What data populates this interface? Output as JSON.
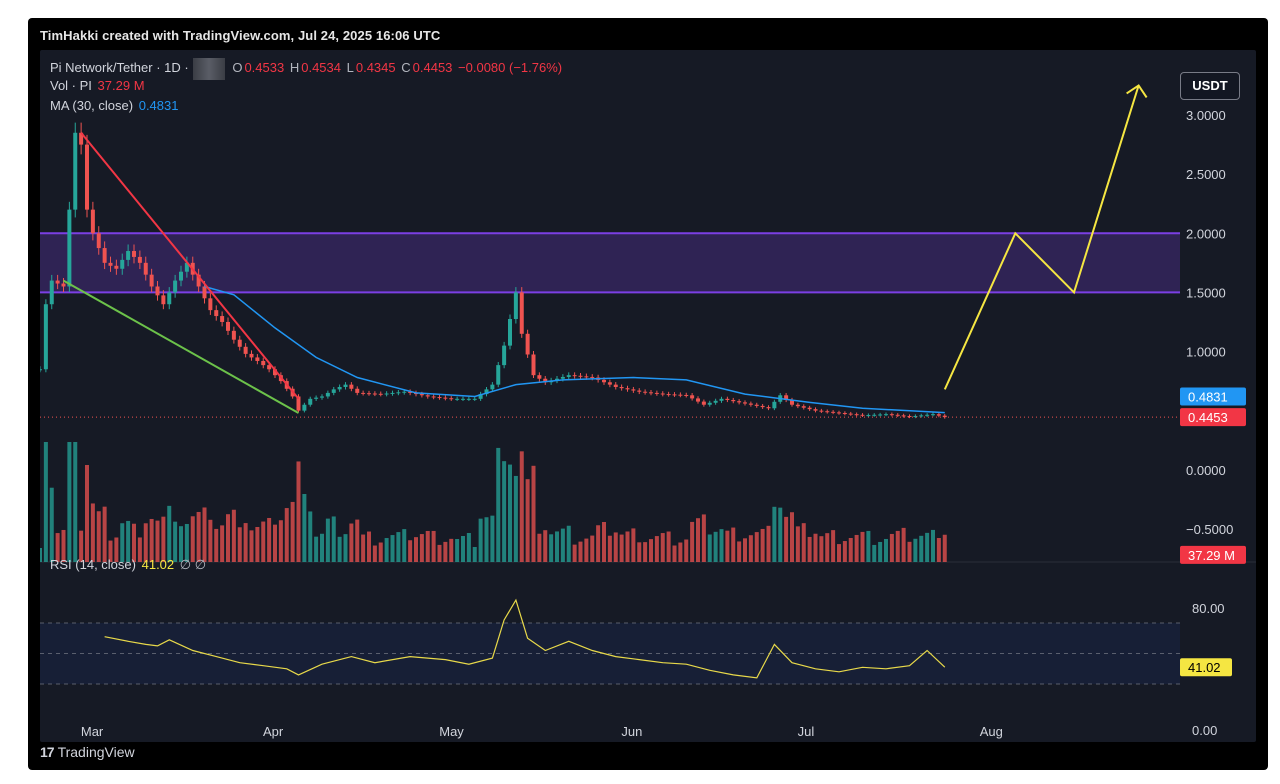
{
  "header": {
    "credit": "TimHakki created with TradingView.com, Jul 24, 2025 16:06 UTC"
  },
  "legend": {
    "symbol": "Pi Network/Tether · 1D ·",
    "open_label": "O",
    "open": "0.4533",
    "high_label": "H",
    "high": "0.4534",
    "low_label": "L",
    "low": "0.4345",
    "close_label": "C",
    "close": "0.4453",
    "change": "−0.0080 (−1.76%)",
    "vol_label": "Vol · PI",
    "vol_value": "37.29 M",
    "ma_label": "MA (30, close)",
    "ma_value": "0.4831",
    "rsi_label": "RSI (14, close)",
    "rsi_value": "41.02",
    "rsi_extra": "∅ ∅"
  },
  "toolbar": {
    "currency_label": "USDT"
  },
  "footer": {
    "brand_logo": "17",
    "brand_name": "TradingView"
  },
  "colors": {
    "background": "#161a25",
    "up": "#26a69a",
    "down": "#ef5350",
    "ma": "#2196f3",
    "rsi": "#e8d94a",
    "zone": "#7b3fe4",
    "wedge_upper": "#f23645",
    "wedge_lower": "#6cc24a",
    "projection": "#f5e642"
  },
  "chart_data": [
    {
      "type": "candlestick",
      "title": "Pi Network/Tether · 1D",
      "x_tick_labels": [
        "Mar",
        "Apr",
        "May",
        "Jun",
        "Jul",
        "Aug"
      ],
      "y_tick_labels": [
        "3.0000",
        "2.5000",
        "2.0000",
        "1.5000",
        "1.0000",
        "0.0000",
        "−0.5000"
      ],
      "y_ticks": [
        3.0,
        2.5,
        2.0,
        1.5,
        1.0,
        0.0,
        -0.5
      ],
      "ylim": [
        -0.78,
        3.55
      ],
      "last_price_label": "0.4453",
      "ma_label_value": "0.4831",
      "volume_label": "37.29 M",
      "date_start": "2025-02-20",
      "date_end": "2025-08-31",
      "close_approx": [
        [
          "2025-02-20",
          0.85
        ],
        [
          "2025-02-21",
          1.4
        ],
        [
          "2025-02-22",
          1.6
        ],
        [
          "2025-02-24",
          1.55
        ],
        [
          "2025-02-26",
          2.85
        ],
        [
          "2025-02-27",
          2.75
        ],
        [
          "2025-02-28",
          2.2
        ],
        [
          "2025-03-01",
          2.0
        ],
        [
          "2025-03-03",
          1.75
        ],
        [
          "2025-03-05",
          1.7
        ],
        [
          "2025-03-07",
          1.85
        ],
        [
          "2025-03-09",
          1.75
        ],
        [
          "2025-03-11",
          1.55
        ],
        [
          "2025-03-13",
          1.4
        ],
        [
          "2025-03-15",
          1.6
        ],
        [
          "2025-03-17",
          1.75
        ],
        [
          "2025-03-19",
          1.55
        ],
        [
          "2025-03-21",
          1.35
        ],
        [
          "2025-03-23",
          1.25
        ],
        [
          "2025-03-25",
          1.1
        ],
        [
          "2025-03-27",
          0.98
        ],
        [
          "2025-03-29",
          0.92
        ],
        [
          "2025-03-31",
          0.85
        ],
        [
          "2025-04-02",
          0.75
        ],
        [
          "2025-04-04",
          0.62
        ],
        [
          "2025-04-05",
          0.5
        ],
        [
          "2025-04-07",
          0.6
        ],
        [
          "2025-04-09",
          0.62
        ],
        [
          "2025-04-11",
          0.68
        ],
        [
          "2025-04-13",
          0.72
        ],
        [
          "2025-04-15",
          0.65
        ],
        [
          "2025-04-19",
          0.64
        ],
        [
          "2025-04-23",
          0.66
        ],
        [
          "2025-04-27",
          0.62
        ],
        [
          "2025-05-01",
          0.6
        ],
        [
          "2025-05-05",
          0.6
        ],
        [
          "2025-05-08",
          0.72
        ],
        [
          "2025-05-10",
          1.05
        ],
        [
          "2025-05-12",
          1.5
        ],
        [
          "2025-05-13",
          1.15
        ],
        [
          "2025-05-15",
          0.8
        ],
        [
          "2025-05-17",
          0.74
        ],
        [
          "2025-05-21",
          0.8
        ],
        [
          "2025-05-25",
          0.78
        ],
        [
          "2025-05-29",
          0.7
        ],
        [
          "2025-06-02",
          0.66
        ],
        [
          "2025-06-06",
          0.64
        ],
        [
          "2025-06-10",
          0.63
        ],
        [
          "2025-06-13",
          0.55
        ],
        [
          "2025-06-16",
          0.6
        ],
        [
          "2025-06-20",
          0.56
        ],
        [
          "2025-06-24",
          0.52
        ],
        [
          "2025-06-26",
          0.63
        ],
        [
          "2025-06-28",
          0.55
        ],
        [
          "2025-07-02",
          0.5
        ],
        [
          "2025-07-06",
          0.48
        ],
        [
          "2025-07-10",
          0.46
        ],
        [
          "2025-07-14",
          0.47
        ],
        [
          "2025-07-18",
          0.45
        ],
        [
          "2025-07-22",
          0.47
        ],
        [
          "2025-07-24",
          0.4453
        ]
      ],
      "ma30_approx": [
        [
          "2025-03-20",
          1.55
        ],
        [
          "2025-03-25",
          1.48
        ],
        [
          "2025-04-01",
          1.2
        ],
        [
          "2025-04-08",
          0.95
        ],
        [
          "2025-04-15",
          0.78
        ],
        [
          "2025-04-25",
          0.65
        ],
        [
          "2025-05-05",
          0.62
        ],
        [
          "2025-05-12",
          0.72
        ],
        [
          "2025-05-20",
          0.76
        ],
        [
          "2025-06-01",
          0.78
        ],
        [
          "2025-06-10",
          0.76
        ],
        [
          "2025-06-20",
          0.64
        ],
        [
          "2025-07-01",
          0.57
        ],
        [
          "2025-07-10",
          0.52
        ],
        [
          "2025-07-24",
          0.4831
        ]
      ],
      "resistance_zone": [
        1.5,
        2.0
      ],
      "annotations": [
        {
          "name": "descending-red-line",
          "points": [
            [
              "2025-02-27",
              2.85
            ],
            [
              "2025-04-05",
              0.6
            ]
          ]
        },
        {
          "name": "ascending-green-line",
          "points": [
            [
              "2025-02-24",
              1.6
            ],
            [
              "2025-04-05",
              0.48
            ]
          ]
        },
        {
          "name": "yellow-projection",
          "points": [
            [
              "2025-07-24",
              0.68
            ],
            [
              "2025-08-05",
              2.0
            ],
            [
              "2025-08-15",
              1.5
            ],
            [
              "2025-08-26",
              3.25
            ]
          ]
        }
      ]
    },
    {
      "type": "line",
      "title": "RSI (14, close)",
      "y_tick_labels": [
        "80.00",
        "0.00"
      ],
      "y_ticks": [
        80,
        0
      ],
      "ylim": [
        -8,
        110
      ],
      "upper_band": 70,
      "lower_band": 30,
      "mid_band": 50,
      "current_label": "41.02",
      "values_approx": [
        [
          "2025-03-03",
          61
        ],
        [
          "2025-03-07",
          58
        ],
        [
          "2025-03-10",
          56
        ],
        [
          "2025-03-12",
          55
        ],
        [
          "2025-03-14",
          59
        ],
        [
          "2025-03-18",
          52
        ],
        [
          "2025-03-22",
          48
        ],
        [
          "2025-03-26",
          44
        ],
        [
          "2025-03-30",
          42
        ],
        [
          "2025-04-03",
          40
        ],
        [
          "2025-04-05",
          36
        ],
        [
          "2025-04-09",
          43
        ],
        [
          "2025-04-14",
          48
        ],
        [
          "2025-04-18",
          44
        ],
        [
          "2025-04-24",
          48
        ],
        [
          "2025-04-30",
          46
        ],
        [
          "2025-05-04",
          43
        ],
        [
          "2025-05-08",
          47
        ],
        [
          "2025-05-10",
          72
        ],
        [
          "2025-05-12",
          85
        ],
        [
          "2025-05-14",
          60
        ],
        [
          "2025-05-17",
          52
        ],
        [
          "2025-05-21",
          58
        ],
        [
          "2025-05-25",
          52
        ],
        [
          "2025-05-29",
          48
        ],
        [
          "2025-06-02",
          46
        ],
        [
          "2025-06-06",
          44
        ],
        [
          "2025-06-10",
          43
        ],
        [
          "2025-06-14",
          39
        ],
        [
          "2025-06-18",
          36
        ],
        [
          "2025-06-22",
          34
        ],
        [
          "2025-06-25",
          56
        ],
        [
          "2025-06-28",
          44
        ],
        [
          "2025-07-02",
          40
        ],
        [
          "2025-07-06",
          38
        ],
        [
          "2025-07-10",
          41
        ],
        [
          "2025-07-14",
          40
        ],
        [
          "2025-07-18",
          42
        ],
        [
          "2025-07-21",
          52
        ],
        [
          "2025-07-24",
          41.02
        ]
      ]
    }
  ]
}
